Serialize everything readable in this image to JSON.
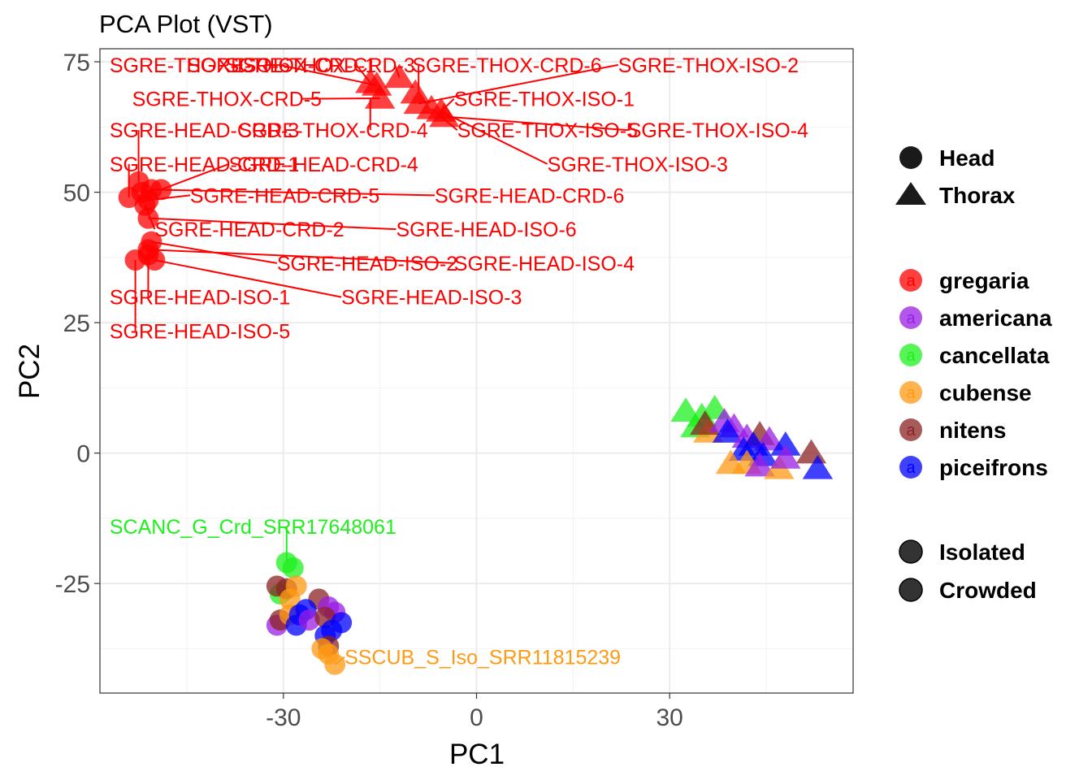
{
  "chart_data": {
    "type": "scatter",
    "title": "PCA Plot (VST)",
    "xlabel": "PC1",
    "ylabel": "PC2",
    "xlim": [
      -58.5,
      58.5
    ],
    "ylim": [
      -46,
      77.5
    ],
    "xticks": [
      -30,
      0,
      30
    ],
    "xtick_labels": [
      "-30",
      "0",
      "30"
    ],
    "yticks": [
      -25,
      0,
      25,
      50,
      75
    ],
    "ytick_labels": [
      "-25",
      "0",
      "25",
      "50",
      "75"
    ],
    "grid": true,
    "legend_placement": "right",
    "colors": {
      "gregaria": "#ff0000",
      "americana": "#9a1ee6",
      "cancellata": "#1ef01e",
      "cubense": "#ff9a14",
      "nitens": "#8b2323",
      "piceifrons": "#0000ff"
    },
    "legends": {
      "tissue": [
        {
          "label": "Head",
          "shape": "circle"
        },
        {
          "label": "Thorax",
          "shape": "triangle"
        }
      ],
      "species": [
        "gregaria",
        "americana",
        "cancellata",
        "cubense",
        "nitens",
        "piceifrons"
      ],
      "condition": [
        {
          "label": "Isolated",
          "shape": "circle"
        },
        {
          "label": "Crowded",
          "shape": "circle"
        }
      ]
    },
    "points": [
      {
        "x": -52.5,
        "y": 52,
        "shape": "circle",
        "species": "gregaria"
      },
      {
        "x": -54,
        "y": 49,
        "shape": "circle",
        "species": "gregaria"
      },
      {
        "x": -52,
        "y": 50,
        "shape": "circle",
        "species": "gregaria"
      },
      {
        "x": -51,
        "y": 48.5,
        "shape": "circle",
        "species": "gregaria"
      },
      {
        "x": -50.5,
        "y": 50.5,
        "shape": "circle",
        "species": "gregaria"
      },
      {
        "x": -49,
        "y": 50.5,
        "shape": "circle",
        "species": "gregaria"
      },
      {
        "x": -51.5,
        "y": 47.5,
        "shape": "circle",
        "species": "gregaria"
      },
      {
        "x": -51,
        "y": 45,
        "shape": "circle",
        "species": "gregaria"
      },
      {
        "x": -50.5,
        "y": 40.5,
        "shape": "circle",
        "species": "gregaria"
      },
      {
        "x": -51,
        "y": 39,
        "shape": "circle",
        "species": "gregaria"
      },
      {
        "x": -53,
        "y": 37,
        "shape": "circle",
        "species": "gregaria"
      },
      {
        "x": -51,
        "y": 38,
        "shape": "circle",
        "species": "gregaria"
      },
      {
        "x": -50,
        "y": 37,
        "shape": "circle",
        "species": "gregaria"
      },
      {
        "x": -15.5,
        "y": 70.5,
        "shape": "triangle",
        "species": "gregaria"
      },
      {
        "x": -16.5,
        "y": 71,
        "shape": "triangle",
        "species": "gregaria"
      },
      {
        "x": -15,
        "y": 68,
        "shape": "triangle",
        "species": "gregaria"
      },
      {
        "x": -12,
        "y": 72,
        "shape": "triangle",
        "species": "gregaria"
      },
      {
        "x": -9.5,
        "y": 69,
        "shape": "triangle",
        "species": "gregaria"
      },
      {
        "x": -9,
        "y": 67,
        "shape": "triangle",
        "species": "gregaria"
      },
      {
        "x": -7,
        "y": 66,
        "shape": "triangle",
        "species": "gregaria"
      },
      {
        "x": -5.5,
        "y": 65.5,
        "shape": "triangle",
        "species": "gregaria"
      },
      {
        "x": -5,
        "y": 64.5,
        "shape": "triangle",
        "species": "gregaria"
      },
      {
        "x": 32.5,
        "y": 8,
        "shape": "triangle",
        "species": "cancellata"
      },
      {
        "x": 35,
        "y": 7,
        "shape": "triangle",
        "species": "cancellata"
      },
      {
        "x": 37,
        "y": 8.5,
        "shape": "triangle",
        "species": "cancellata"
      },
      {
        "x": 34,
        "y": 5,
        "shape": "triangle",
        "species": "cancellata"
      },
      {
        "x": 36,
        "y": 4,
        "shape": "triangle",
        "species": "cubense"
      },
      {
        "x": 35.5,
        "y": 5.5,
        "shape": "triangle",
        "species": "nitens"
      },
      {
        "x": 38.5,
        "y": 6,
        "shape": "triangle",
        "species": "americana"
      },
      {
        "x": 40,
        "y": 5,
        "shape": "triangle",
        "species": "americana"
      },
      {
        "x": 39,
        "y": 4,
        "shape": "triangle",
        "species": "piceifrons"
      },
      {
        "x": 42,
        "y": 3,
        "shape": "triangle",
        "species": "americana"
      },
      {
        "x": 44,
        "y": 3.5,
        "shape": "triangle",
        "species": "nitens"
      },
      {
        "x": 45.5,
        "y": 2.5,
        "shape": "triangle",
        "species": "americana"
      },
      {
        "x": 48,
        "y": 1.5,
        "shape": "triangle",
        "species": "piceifrons"
      },
      {
        "x": 52,
        "y": 0,
        "shape": "triangle",
        "species": "nitens"
      },
      {
        "x": 43,
        "y": 1.5,
        "shape": "triangle",
        "species": "piceifrons"
      },
      {
        "x": 41.5,
        "y": 0.5,
        "shape": "triangle",
        "species": "piceifrons"
      },
      {
        "x": 44.5,
        "y": -0.5,
        "shape": "triangle",
        "species": "piceifrons"
      },
      {
        "x": 39.5,
        "y": -2,
        "shape": "triangle",
        "species": "cubense"
      },
      {
        "x": 42,
        "y": -2,
        "shape": "triangle",
        "species": "cubense"
      },
      {
        "x": 44,
        "y": -2.5,
        "shape": "triangle",
        "species": "americana"
      },
      {
        "x": 47,
        "y": -3,
        "shape": "triangle",
        "species": "cubense"
      },
      {
        "x": 53,
        "y": -3,
        "shape": "triangle",
        "species": "piceifrons"
      },
      {
        "x": 48,
        "y": -1,
        "shape": "triangle",
        "species": "americana"
      },
      {
        "x": -29.5,
        "y": -21,
        "shape": "circle",
        "species": "cancellata"
      },
      {
        "x": -28.5,
        "y": -22,
        "shape": "circle",
        "species": "cancellata"
      },
      {
        "x": -30.5,
        "y": -27,
        "shape": "circle",
        "species": "cancellata"
      },
      {
        "x": -31,
        "y": -25.5,
        "shape": "circle",
        "species": "nitens"
      },
      {
        "x": -29.5,
        "y": -26,
        "shape": "circle",
        "species": "nitens"
      },
      {
        "x": -28,
        "y": -25.5,
        "shape": "circle",
        "species": "cubense"
      },
      {
        "x": -29,
        "y": -28,
        "shape": "circle",
        "species": "cubense"
      },
      {
        "x": -24.5,
        "y": -28,
        "shape": "circle",
        "species": "nitens"
      },
      {
        "x": -23,
        "y": -29.5,
        "shape": "circle",
        "species": "americana"
      },
      {
        "x": -22,
        "y": -30.5,
        "shape": "circle",
        "species": "americana"
      },
      {
        "x": -31,
        "y": -33,
        "shape": "circle",
        "species": "americana"
      },
      {
        "x": -30.5,
        "y": -32,
        "shape": "circle",
        "species": "nitens"
      },
      {
        "x": -29,
        "y": -31,
        "shape": "circle",
        "species": "cubense"
      },
      {
        "x": -27.5,
        "y": -31,
        "shape": "circle",
        "species": "piceifrons"
      },
      {
        "x": -26.5,
        "y": -30,
        "shape": "circle",
        "species": "piceifrons"
      },
      {
        "x": -28,
        "y": -33,
        "shape": "circle",
        "species": "piceifrons"
      },
      {
        "x": -26,
        "y": -32,
        "shape": "circle",
        "species": "americana"
      },
      {
        "x": -23.5,
        "y": -31.5,
        "shape": "circle",
        "species": "nitens"
      },
      {
        "x": -21,
        "y": -32.5,
        "shape": "circle",
        "species": "piceifrons"
      },
      {
        "x": -22.5,
        "y": -34,
        "shape": "circle",
        "species": "piceifrons"
      },
      {
        "x": -23.5,
        "y": -35,
        "shape": "circle",
        "species": "piceifrons"
      },
      {
        "x": -23,
        "y": -37,
        "shape": "circle",
        "species": "nitens"
      },
      {
        "x": -24,
        "y": -37.5,
        "shape": "circle",
        "species": "cubense"
      },
      {
        "x": -23,
        "y": -38.5,
        "shape": "circle",
        "species": "cubense"
      },
      {
        "x": -22,
        "y": -40.5,
        "shape": "circle",
        "species": "cubense"
      }
    ],
    "labels": [
      {
        "text": "SGRE-THOX-ISO-6",
        "tx": -57,
        "ty": 73,
        "ax": -15.5,
        "ay": 70.5,
        "species": "gregaria"
      },
      {
        "text": "SGRE-THOX-CRD-1",
        "tx": -45,
        "ty": 73,
        "ax": -16.5,
        "ay": 71,
        "species": "gregaria"
      },
      {
        "text": "SGRE-THOX-CRD-3",
        "tx": -39,
        "ty": 73,
        "ax": -12,
        "ay": 72,
        "species": "gregaria"
      },
      {
        "text": "SGRE-THOX-CRD-6",
        "tx": -10,
        "ty": 73,
        "ax": -9,
        "ay": 69.5,
        "species": "gregaria"
      },
      {
        "text": "SGRE-THOX-ISO-2",
        "tx": 22,
        "ty": 73,
        "ax": -9,
        "ay": 67,
        "species": "gregaria"
      },
      {
        "text": "SGRE-THOX-CRD-5",
        "tx": -53.5,
        "ty": 66.5,
        "ax": -15,
        "ay": 68,
        "species": "gregaria"
      },
      {
        "text": "SGRE-THOX-ISO-1",
        "tx": -3.5,
        "ty": 66.5,
        "ax": -5.5,
        "ay": 65.5,
        "species": "gregaria"
      },
      {
        "text": "SGRE-HEAD-CRD-3",
        "tx": -57,
        "ty": 60.5,
        "ax": -52.5,
        "ay": 52,
        "species": "gregaria"
      },
      {
        "text": "SGRE-THOX-CRD-4",
        "tx": -37,
        "ty": 60.5,
        "ax": -16.5,
        "ay": 68,
        "species": "gregaria"
      },
      {
        "text": "SGRE-THOX-ISO-5",
        "tx": -3,
        "ty": 60.5,
        "ax": -7,
        "ay": 66,
        "species": "gregaria"
      },
      {
        "text": "SGRE-THOX-ISO-4",
        "tx": 23.5,
        "ty": 60.5,
        "ax": -5,
        "ay": 64.5,
        "species": "gregaria"
      },
      {
        "text": "SGRE-HEAD-CRD-1",
        "tx": -57,
        "ty": 54,
        "ax": -54,
        "ay": 49,
        "species": "gregaria"
      },
      {
        "text": "SGRE-HEAD-CRD-4",
        "tx": -38.5,
        "ty": 54,
        "ax": -49,
        "ay": 50.5,
        "species": "gregaria"
      },
      {
        "text": "SGRE-THOX-ISO-3",
        "tx": 11,
        "ty": 54,
        "ax": -5.5,
        "ay": 65.5,
        "species": "gregaria"
      },
      {
        "text": "SGRE-HEAD-CRD-5",
        "tx": -44.5,
        "ty": 48,
        "ax": -51,
        "ay": 48.5,
        "species": "gregaria"
      },
      {
        "text": "SGRE-HEAD-CRD-6",
        "tx": -6.5,
        "ty": 48,
        "ax": -50.5,
        "ay": 50.5,
        "species": "gregaria"
      },
      {
        "text": "SGRE-HEAD-CRD-2",
        "tx": -50,
        "ty": 41.5,
        "ax": -51.5,
        "ay": 47.5,
        "species": "gregaria"
      },
      {
        "text": "SGRE-HEAD-ISO-6",
        "tx": -12.5,
        "ty": 41.5,
        "ax": -51,
        "ay": 45,
        "species": "gregaria"
      },
      {
        "text": "SGRE-HEAD-ISO-2",
        "tx": -31,
        "ty": 35,
        "ax": -50.5,
        "ay": 40.5,
        "species": "gregaria"
      },
      {
        "text": "SGRE-HEAD-ISO-4",
        "tx": -3.5,
        "ty": 35,
        "ax": -51,
        "ay": 39,
        "species": "gregaria"
      },
      {
        "text": "SGRE-HEAD-ISO-1",
        "tx": -57,
        "ty": 28.5,
        "ax": -51,
        "ay": 38,
        "species": "gregaria"
      },
      {
        "text": "SGRE-HEAD-ISO-3",
        "tx": -21,
        "ty": 28.5,
        "ax": -50,
        "ay": 37,
        "species": "gregaria"
      },
      {
        "text": "SGRE-HEAD-ISO-5",
        "tx": -57,
        "ty": 22,
        "ax": -53,
        "ay": 37,
        "species": "gregaria"
      },
      {
        "text": "SCANC_G_Crd_SRR17648061",
        "tx": -57,
        "ty": -15.5,
        "ax": -29.5,
        "ay": -21,
        "species": "cancellata"
      },
      {
        "text": "SSCUB_S_Iso_SRR11815239",
        "tx": -20.5,
        "ty": -40.5,
        "ax": -22,
        "ay": -40.5,
        "species": "cubense"
      }
    ]
  }
}
